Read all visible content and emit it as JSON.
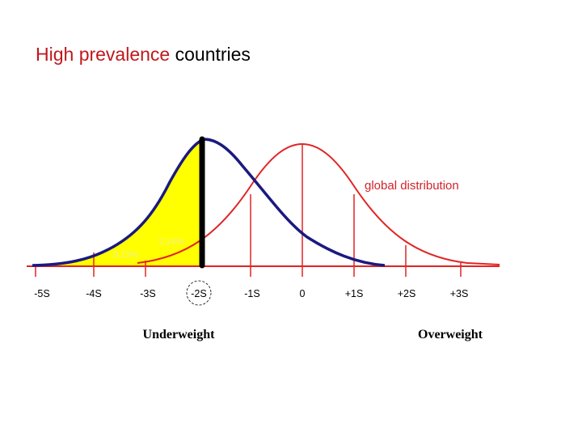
{
  "title": {
    "highlight": "High prevalence",
    "rest": " countries"
  },
  "annotation": "global distribution",
  "percentages": {
    "p1": "0.13%",
    "p2": "2.14%"
  },
  "axis": {
    "ticks": [
      "-5S",
      "-4S",
      "-3S",
      "-2S",
      "-1S",
      "0",
      "+1S",
      "+2S",
      "+3S"
    ],
    "circled_tick": "-2S",
    "left_label": "Underweight",
    "right_label": "Overweight"
  },
  "colors": {
    "title_highlight": "#c0181c",
    "global_curve": "#e02424",
    "population_curve": "#1a1a7e",
    "fill": "#ffff00",
    "cutoff_bar": "#000000"
  }
}
